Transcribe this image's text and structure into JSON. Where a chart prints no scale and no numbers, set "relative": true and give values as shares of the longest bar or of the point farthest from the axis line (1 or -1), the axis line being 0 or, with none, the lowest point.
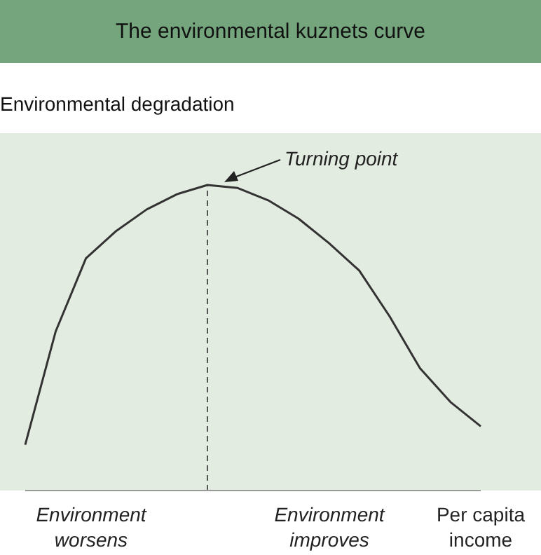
{
  "chart_data": {
    "type": "line",
    "title": "The environmental kuznets curve",
    "ylabel": "Environmental degradation",
    "xlabel": "Per capita income",
    "relative": true,
    "categories": [
      null,
      null,
      null,
      null,
      null,
      null,
      null,
      null,
      null,
      null,
      null,
      null,
      null,
      null,
      null,
      null
    ],
    "series": [
      {
        "color": "#333333",
        "values": [
          0.15,
          0.52,
          0.76,
          0.85,
          0.92,
          0.97,
          1,
          0.99,
          0.95,
          0.89,
          0.81,
          0.72,
          0.57,
          0.4,
          0.29,
          0.21
        ]
      }
    ],
    "annotations": [
      "Turning point",
      "Environment worsens",
      "Environment improves"
    ],
    "line_style": "solid"
  }
}
